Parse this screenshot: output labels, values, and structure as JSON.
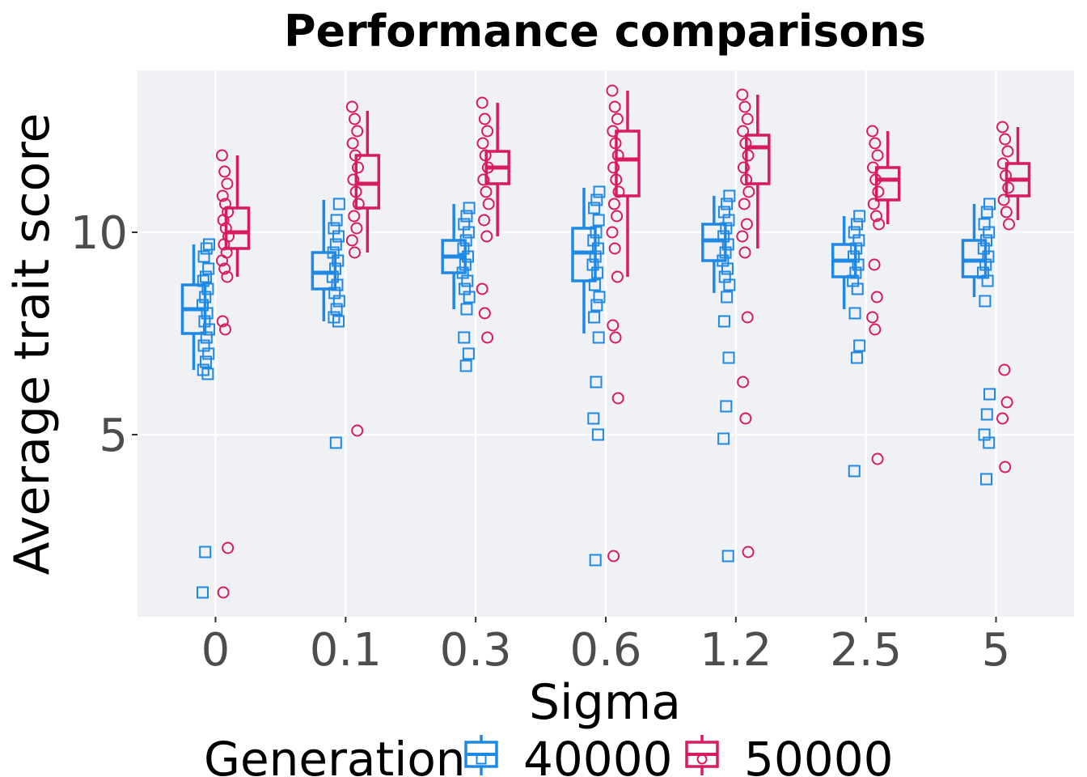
{
  "chart_data": {
    "type": "box",
    "title": "Performance comparisons",
    "xlabel": "Sigma",
    "ylabel": "Average trait score",
    "categories": [
      "0",
      "0.1",
      "0.3",
      "0.6",
      "1.2",
      "2.5",
      "5"
    ],
    "ylim": [
      0.5,
      14.0
    ],
    "yticks": [
      5,
      10
    ],
    "grid": true,
    "legend": {
      "title": "Generation",
      "position": "bottom"
    },
    "series": [
      {
        "name": "40000",
        "color": "#1e88e5",
        "marker": "square",
        "boxes": [
          {
            "min": 6.6,
            "q1": 7.5,
            "median": 8.1,
            "q3": 8.7,
            "max": 9.7
          },
          {
            "min": 7.8,
            "q1": 8.6,
            "median": 9.0,
            "q3": 9.5,
            "max": 10.8
          },
          {
            "min": 8.1,
            "q1": 9.0,
            "median": 9.4,
            "q3": 9.8,
            "max": 10.7
          },
          {
            "min": 7.5,
            "q1": 8.8,
            "median": 9.5,
            "q3": 10.1,
            "max": 11.1
          },
          {
            "min": 8.5,
            "q1": 9.3,
            "median": 9.8,
            "q3": 10.2,
            "max": 10.9
          },
          {
            "min": 8.1,
            "q1": 8.9,
            "median": 9.3,
            "q3": 9.7,
            "max": 10.4
          },
          {
            "min": 8.4,
            "q1": 8.9,
            "median": 9.3,
            "q3": 9.8,
            "max": 10.7
          }
        ],
        "points": [
          [
            9.7,
            9.6,
            9.4,
            9.1,
            8.9,
            8.8,
            8.6,
            8.4,
            8.2,
            8.0,
            7.8,
            7.6,
            7.4,
            7.2,
            7.0,
            6.8,
            6.6,
            6.5,
            2.1,
            1.1
          ],
          [
            10.7,
            10.3,
            10.1,
            9.9,
            9.7,
            9.5,
            9.3,
            9.1,
            8.9,
            8.7,
            8.5,
            8.3,
            8.1,
            7.9,
            7.8,
            4.8
          ],
          [
            10.6,
            10.4,
            10.2,
            10.0,
            9.8,
            9.6,
            9.4,
            9.2,
            9.0,
            8.8,
            8.6,
            8.4,
            8.1,
            7.4,
            7.0,
            6.7
          ],
          [
            11.0,
            10.8,
            10.6,
            10.3,
            10.0,
            9.8,
            9.6,
            9.4,
            9.2,
            9.0,
            8.7,
            8.4,
            8.2,
            7.9,
            7.4,
            6.3,
            5.4,
            5.0,
            1.9
          ],
          [
            10.9,
            10.7,
            10.5,
            10.3,
            10.1,
            9.9,
            9.7,
            9.5,
            9.3,
            9.1,
            8.9,
            8.7,
            8.4,
            7.8,
            6.9,
            5.7,
            4.9,
            2.0
          ],
          [
            10.4,
            10.2,
            10.0,
            9.8,
            9.6,
            9.4,
            9.2,
            9.0,
            8.8,
            8.6,
            8.0,
            7.2,
            6.9,
            4.1
          ],
          [
            10.7,
            10.5,
            10.2,
            10.0,
            9.8,
            9.6,
            9.4,
            9.2,
            9.0,
            8.8,
            8.3,
            6.0,
            5.5,
            5.0,
            4.8,
            3.9
          ]
        ]
      },
      {
        "name": "50000",
        "color": "#d81b60",
        "marker": "circle",
        "boxes": [
          {
            "min": 8.9,
            "q1": 9.6,
            "median": 10.0,
            "q3": 10.6,
            "max": 11.9
          },
          {
            "min": 9.5,
            "q1": 10.6,
            "median": 11.2,
            "q3": 11.9,
            "max": 13.0
          },
          {
            "min": 9.9,
            "q1": 11.2,
            "median": 11.6,
            "q3": 12.0,
            "max": 13.2
          },
          {
            "min": 8.9,
            "q1": 10.9,
            "median": 11.8,
            "q3": 12.5,
            "max": 13.5
          },
          {
            "min": 9.6,
            "q1": 11.2,
            "median": 12.1,
            "q3": 12.4,
            "max": 13.4
          },
          {
            "min": 10.2,
            "q1": 10.8,
            "median": 11.3,
            "q3": 11.6,
            "max": 12.5
          },
          {
            "min": 10.3,
            "q1": 10.9,
            "median": 11.3,
            "q3": 11.7,
            "max": 12.6
          }
        ],
        "points": [
          [
            11.9,
            11.5,
            11.2,
            10.9,
            10.7,
            10.5,
            10.3,
            10.1,
            9.9,
            9.7,
            9.5,
            9.3,
            9.1,
            8.9,
            7.8,
            7.6,
            2.2,
            1.1
          ],
          [
            13.1,
            12.8,
            12.5,
            12.2,
            11.9,
            11.6,
            11.3,
            11.0,
            10.7,
            10.4,
            10.1,
            9.8,
            9.5,
            5.1
          ],
          [
            13.2,
            12.8,
            12.5,
            12.2,
            11.9,
            11.6,
            11.3,
            11.0,
            10.7,
            10.3,
            9.9,
            8.6,
            8.0,
            7.4
          ],
          [
            13.5,
            13.1,
            12.8,
            12.5,
            12.2,
            11.9,
            11.6,
            11.3,
            11.0,
            10.7,
            10.4,
            10.0,
            9.6,
            8.9,
            7.7,
            7.4,
            5.9,
            2.0
          ],
          [
            13.4,
            13.1,
            12.8,
            12.5,
            12.2,
            11.9,
            11.6,
            11.3,
            11.0,
            10.7,
            10.2,
            9.9,
            9.5,
            7.9,
            6.3,
            5.4,
            2.1
          ],
          [
            12.5,
            12.2,
            11.9,
            11.6,
            11.3,
            11.0,
            10.7,
            10.4,
            10.2,
            9.2,
            8.4,
            7.9,
            7.6,
            4.4
          ],
          [
            12.6,
            12.3,
            12.0,
            11.7,
            11.4,
            11.1,
            10.8,
            10.5,
            10.2,
            6.6,
            5.8,
            5.4,
            4.2
          ]
        ]
      }
    ]
  }
}
